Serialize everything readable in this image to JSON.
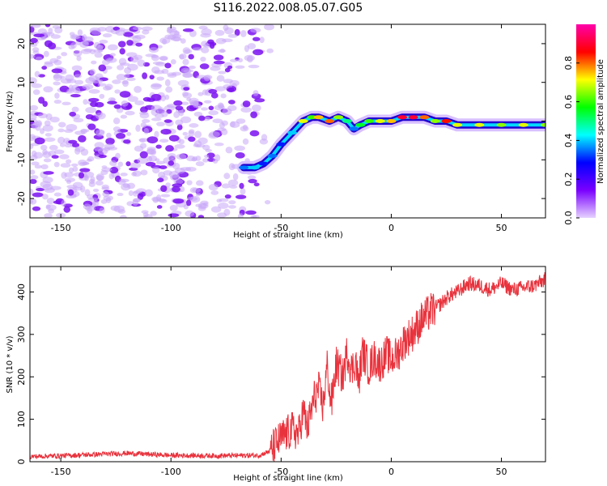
{
  "title": "S116.2022.008.05.07.G05",
  "colors": {
    "snr_line": "#e8323c",
    "scatter_noise": "#a070f0",
    "colormap": [
      "#e6d2ff",
      "#7a00ff",
      "#0000ff",
      "#00ffff",
      "#00ff00",
      "#ffff00",
      "#ff0000",
      "#ff00aa"
    ]
  },
  "chart_data": [
    {
      "type": "heatmap",
      "xlabel": "Height of straight line (km)",
      "ylabel": "Frequency (Hz)",
      "xlim": [
        -164,
        70
      ],
      "ylim": [
        -25,
        25
      ],
      "x_ticks": [
        "-150",
        "-100",
        "-50",
        "0",
        "50"
      ],
      "y_ticks": [
        "20",
        "10",
        "0",
        "-10",
        "-20"
      ],
      "colorbar": {
        "label": "Normalized spectral amplitude",
        "range": [
          0.0,
          1.0
        ],
        "ticks": [
          "0.0",
          "0.2",
          "0.4",
          "0.6",
          "0.8"
        ]
      },
      "noise_region": {
        "x_from": -164,
        "x_to": -55,
        "freq_from": -25,
        "freq_to": 25
      },
      "signal_track": {
        "x": [
          -67,
          -62,
          -58,
          -54,
          -50,
          -45,
          -40,
          -36,
          -33,
          -28,
          -24,
          -20,
          -17,
          -14,
          -10,
          -5,
          0,
          5,
          10,
          15,
          20,
          25,
          30,
          40,
          50,
          60,
          70
        ],
        "freq": [
          -12,
          -12,
          -11,
          -9,
          -6,
          -3,
          0,
          1,
          1,
          0,
          1,
          0,
          -2,
          -1,
          0,
          0,
          0,
          1,
          1,
          1,
          0,
          0,
          -1,
          -1,
          -1,
          -1,
          -1
        ],
        "amplitude": [
          0.35,
          0.4,
          0.3,
          0.35,
          0.3,
          0.4,
          0.7,
          0.6,
          0.75,
          0.8,
          0.65,
          0.5,
          0.35,
          0.55,
          0.6,
          0.7,
          0.75,
          0.9,
          0.9,
          0.8,
          0.65,
          0.85,
          0.7,
          0.7,
          0.65,
          0.7,
          0.65
        ]
      }
    },
    {
      "type": "line",
      "xlabel": "Height of straight line (km)",
      "ylabel": "SNR (10 * v/v)",
      "xlim": [
        -164,
        70
      ],
      "ylim": [
        0,
        460
      ],
      "x_ticks": [
        "-150",
        "-100",
        "-50",
        "0",
        "50"
      ],
      "y_ticks": [
        "0",
        "100",
        "200",
        "300",
        "400"
      ],
      "series": [
        {
          "x": [
            -164,
            -150,
            -120,
            -100,
            -80,
            -60,
            -55,
            -50,
            -45,
            -42,
            -40,
            -38,
            -35,
            -33,
            -31,
            -29,
            -28,
            -27,
            -25,
            -22,
            -20,
            -18,
            -16,
            -15,
            -13,
            -12,
            -10,
            -8,
            -5,
            -2,
            0,
            3,
            6,
            10,
            14,
            18,
            22,
            26,
            30,
            35,
            40,
            45,
            50,
            55,
            60,
            65,
            70
          ],
          "y": [
            12,
            14,
            20,
            15,
            14,
            15,
            25,
            55,
            75,
            65,
            120,
            80,
            150,
            170,
            130,
            230,
            160,
            140,
            230,
            200,
            260,
            215,
            240,
            180,
            260,
            245,
            220,
            245,
            230,
            255,
            240,
            255,
            285,
            305,
            335,
            355,
            370,
            390,
            400,
            420,
            415,
            405,
            420,
            405,
            410,
            415,
            430
          ]
        }
      ]
    }
  ]
}
